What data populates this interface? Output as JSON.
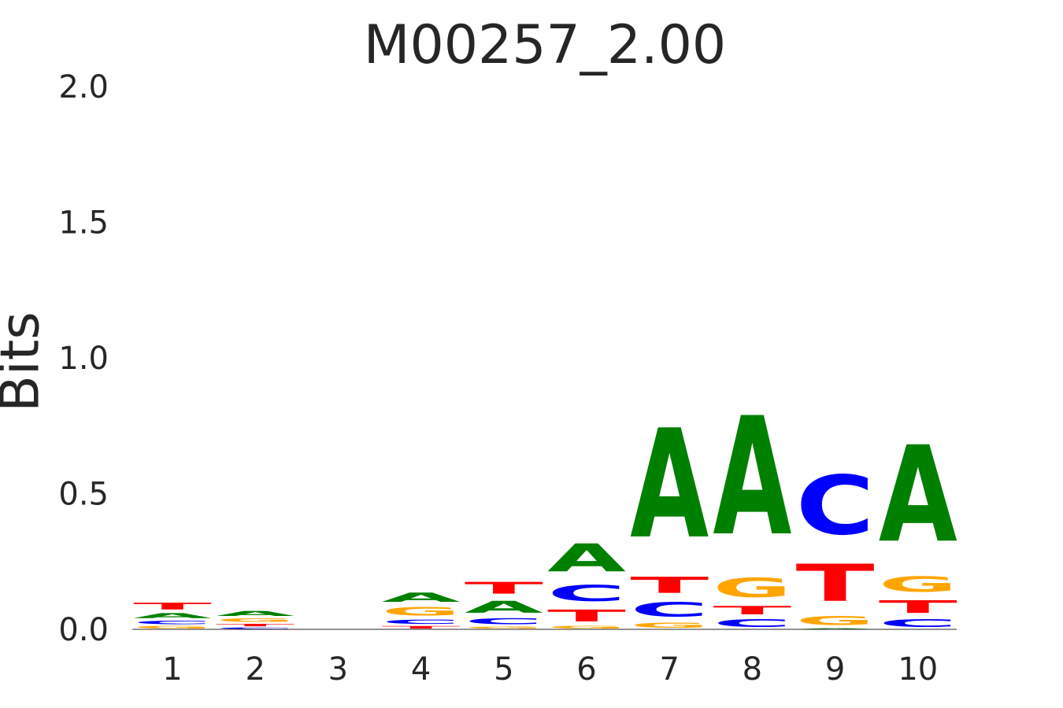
{
  "chart_data": {
    "type": "sequence-logo",
    "title": "M00257_2.00",
    "ylabel": "Bits",
    "xlabel": "",
    "ylim": [
      0,
      2.0
    ],
    "yticks": [
      "0.0",
      "0.5",
      "1.0",
      "1.5",
      "2.0"
    ],
    "ytick_values": [
      0,
      0.5,
      1.0,
      1.5,
      2.0
    ],
    "grid": false,
    "colors": {
      "A": "#008000",
      "C": "#0000ff",
      "G": "#ffa500",
      "T": "#ff0000"
    },
    "positions": [
      {
        "label": "1",
        "stack": [
          {
            "letter": "G",
            "height": 0.015
          },
          {
            "letter": "C",
            "height": 0.02
          },
          {
            "letter": "A",
            "height": 0.03
          },
          {
            "letter": "T",
            "height": 0.04
          }
        ]
      },
      {
        "label": "2",
        "stack": [
          {
            "letter": "C",
            "height": 0.008
          },
          {
            "letter": "T",
            "height": 0.015
          },
          {
            "letter": "G",
            "height": 0.02
          },
          {
            "letter": "A",
            "height": 0.03
          }
        ]
      },
      {
        "label": "3",
        "stack": [
          {
            "letter": "A",
            "height": 0.001
          },
          {
            "letter": "C",
            "height": 0.001
          },
          {
            "letter": "G",
            "height": 0.001
          },
          {
            "letter": "T",
            "height": 0.001
          }
        ]
      },
      {
        "label": "4",
        "stack": [
          {
            "letter": "T",
            "height": 0.015
          },
          {
            "letter": "C",
            "height": 0.025
          },
          {
            "letter": "G",
            "height": 0.05
          },
          {
            "letter": "A",
            "height": 0.055
          }
        ]
      },
      {
        "label": "5",
        "stack": [
          {
            "letter": "G",
            "height": 0.012
          },
          {
            "letter": "C",
            "height": 0.035
          },
          {
            "letter": "A",
            "height": 0.07
          },
          {
            "letter": "T",
            "height": 0.07
          }
        ]
      },
      {
        "label": "6",
        "stack": [
          {
            "letter": "G",
            "height": 0.015
          },
          {
            "letter": "T",
            "height": 0.07
          },
          {
            "letter": "C",
            "height": 0.095
          },
          {
            "letter": "A",
            "height": 0.165
          }
        ]
      },
      {
        "label": "7",
        "stack": [
          {
            "letter": "G",
            "height": 0.03
          },
          {
            "letter": "C",
            "height": 0.085
          },
          {
            "letter": "T",
            "height": 0.095
          },
          {
            "letter": "A",
            "height": 0.645
          }
        ]
      },
      {
        "label": "8",
        "stack": [
          {
            "letter": "C",
            "height": 0.045
          },
          {
            "letter": "T",
            "height": 0.05
          },
          {
            "letter": "G",
            "height": 0.115
          },
          {
            "letter": "A",
            "height": 0.7
          }
        ]
      },
      {
        "label": "9",
        "stack": [
          {
            "letter": "A",
            "height": 0.005
          },
          {
            "letter": "G",
            "height": 0.055
          },
          {
            "letter": "T",
            "height": 0.22
          },
          {
            "letter": "C",
            "height": 0.35
          }
        ]
      },
      {
        "label": "10",
        "stack": [
          {
            "letter": "C",
            "height": 0.045
          },
          {
            "letter": "T",
            "height": 0.075
          },
          {
            "letter": "G",
            "height": 0.09
          },
          {
            "letter": "A",
            "height": 0.57
          }
        ]
      }
    ]
  }
}
